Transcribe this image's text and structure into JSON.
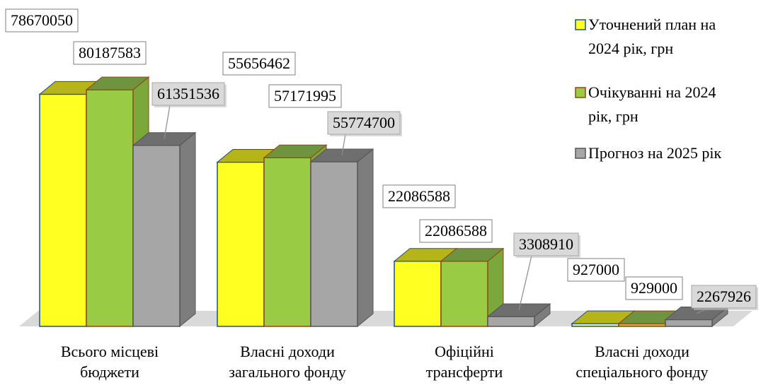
{
  "chart_data": {
    "type": "bar",
    "title": "",
    "xlabel": "",
    "ylabel": "",
    "categories": [
      [
        "Всього місцеві",
        "бюджети"
      ],
      [
        "Власні доходи",
        "загального фонду"
      ],
      [
        "Офіційні",
        "трансферти"
      ],
      [
        "Власні доходи",
        "спеціального фонду"
      ]
    ],
    "series": [
      {
        "name": [
          "Уточнений план на",
          "2024 рік, грн"
        ],
        "values": [
          78670050,
          55656462,
          22086588,
          927000
        ],
        "front": "#ffff22",
        "top": "#b5b51a",
        "side": "#d0d020",
        "edge": "#1f4e9a"
      },
      {
        "name": [
          "Очікуванні на 2024",
          "рік, грн"
        ],
        "values": [
          80187583,
          57171995,
          22086588,
          929000
        ],
        "front": "#99cc44",
        "top": "#6f9440",
        "side": "#7aa83a",
        "edge": "#a0400f"
      },
      {
        "name": [
          "Прогноз на 2025 рік"
        ],
        "values": [
          61351536,
          55774700,
          3308910,
          2267926
        ],
        "front": "#a6a6a6",
        "top": "#6e6e6e",
        "side": "#7d7d7d",
        "edge": "#555555"
      }
    ],
    "ylim": [
      0,
      85000000
    ],
    "grid": false,
    "legend_position": "right"
  }
}
